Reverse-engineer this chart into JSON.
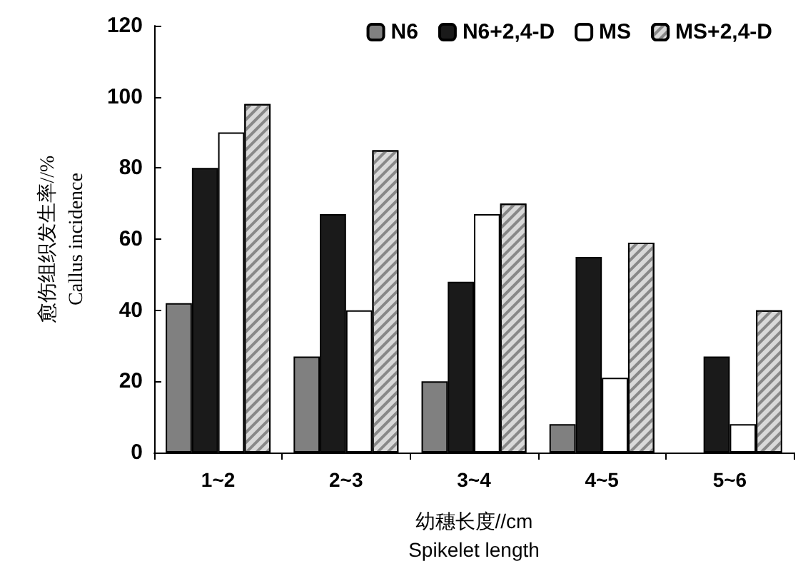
{
  "chart_data": {
    "type": "bar",
    "xlabel": "幼穗长度//cm\nSpikelet length",
    "ylabel": "愈伤组织发生率//%\nCallus incidence",
    "categories": [
      "1~2",
      "2~3",
      "3~4",
      "4~5",
      "5~6"
    ],
    "series": [
      {
        "name": "N6",
        "color": "#808080",
        "values": [
          42,
          27,
          20,
          8,
          null
        ]
      },
      {
        "name": "N6+2,4-D",
        "color": "#1a1a1a",
        "values": [
          80,
          67,
          48,
          55,
          27
        ]
      },
      {
        "name": "MS",
        "color": "#ffffff",
        "values": [
          90,
          40,
          67,
          21,
          8
        ]
      },
      {
        "name": "MS+2,4-D",
        "color": "#d9d9d9",
        "values": [
          98,
          85,
          70,
          59,
          40
        ]
      }
    ],
    "ylim": [
      0,
      120
    ],
    "yticks": [
      0,
      20,
      40,
      60,
      80,
      100,
      120
    ],
    "grid": false,
    "legend": "top right"
  }
}
